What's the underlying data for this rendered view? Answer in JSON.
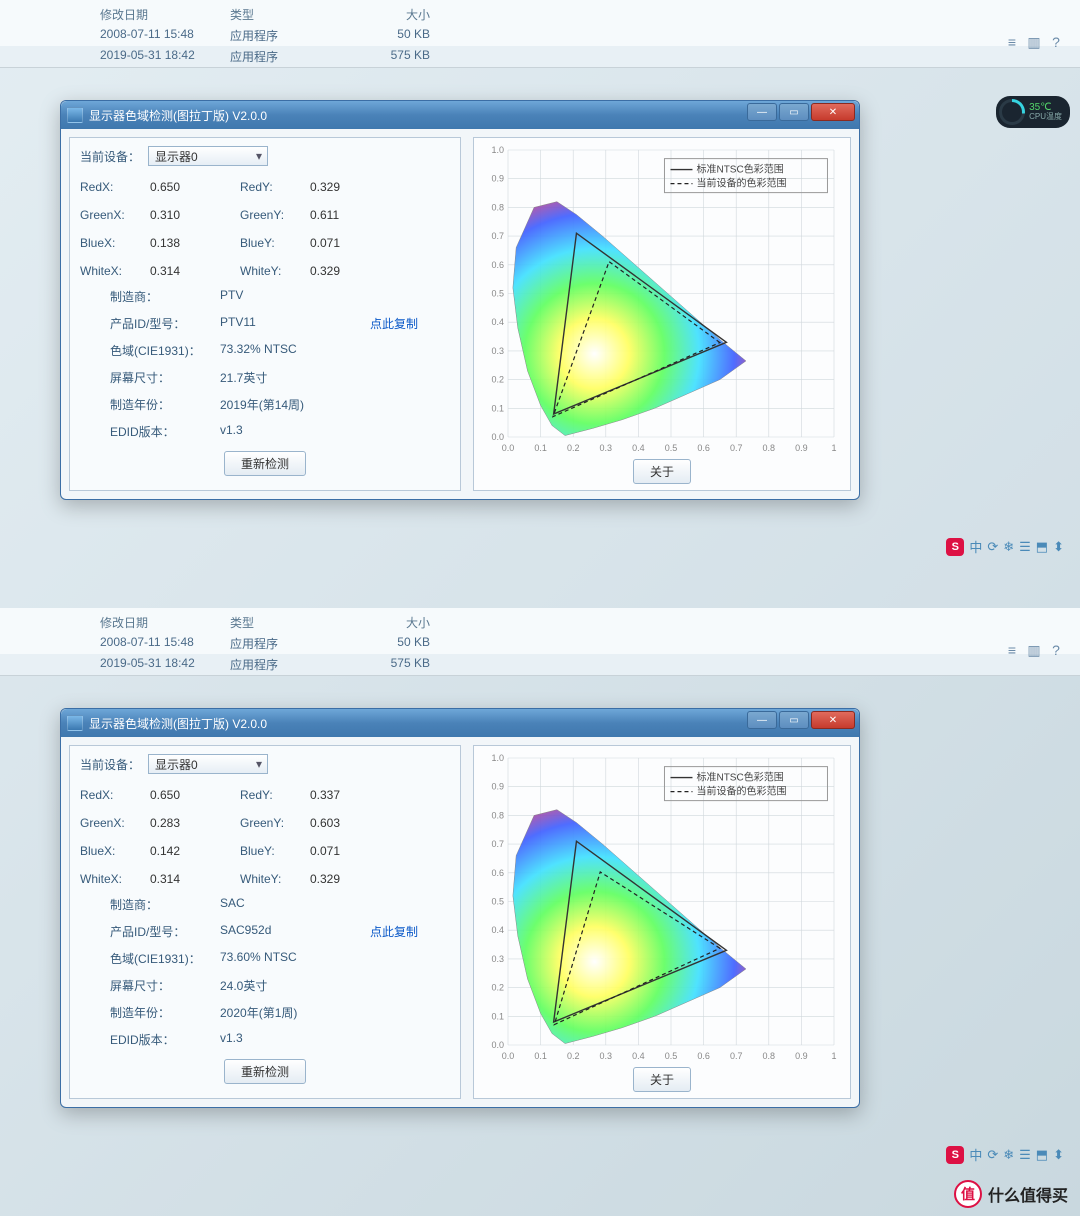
{
  "file_list": {
    "headers": {
      "date": "修改日期",
      "type": "类型",
      "size": "大小"
    },
    "rows": [
      {
        "date": "2008-07-11 15:48",
        "type": "应用程序",
        "size": "50 KB"
      },
      {
        "date": "2019-05-31 18:42",
        "type": "应用程序",
        "size": "575 KB"
      }
    ]
  },
  "explorer_icons": [
    "≡",
    "▥",
    "?"
  ],
  "window_title": "显示器色域检测(图拉丁版) V2.0.0",
  "winbtns": {
    "min": "—",
    "max": "▭",
    "close": "✕"
  },
  "current_device_label": "当前设备：",
  "device_name": "显示器0",
  "labels": {
    "RedX": "RedX:",
    "RedY": "RedY:",
    "GreenX": "GreenX:",
    "GreenY": "GreenY:",
    "BlueX": "BlueX:",
    "BlueY": "BlueY:",
    "WhiteX": "WhiteX:",
    "WhiteY": "WhiteY:",
    "maker": "制造商：",
    "pid": "产品ID/型号：",
    "gamut": "色域(CIE1931)：",
    "size": "屏幕尺寸：",
    "year": "制造年份：",
    "edid": "EDID版本：",
    "copy": "点此复制",
    "retest": "重新检测",
    "about": "关于"
  },
  "legend": {
    "ntsc": "标准NTSC色彩范围",
    "device": "当前设备的色彩范围"
  },
  "chart": {
    "xticks": [
      "0.0",
      "0.1",
      "0.2",
      "0.3",
      "0.4",
      "0.5",
      "0.6",
      "0.7",
      "0.8",
      "0.9",
      "1"
    ],
    "yticks": [
      "0.0",
      "0.1",
      "0.2",
      "0.3",
      "0.4",
      "0.5",
      "0.6",
      "0.7",
      "0.8",
      "0.9",
      "1.0"
    ],
    "grid_color": "#d0d8dc",
    "ntsc_line_color": "#333333",
    "device_line_color": "#222222",
    "device_line_dash": "4 3",
    "locus": [
      [
        0.175,
        0.005
      ],
      [
        0.135,
        0.04
      ],
      [
        0.1,
        0.11
      ],
      [
        0.06,
        0.23
      ],
      [
        0.03,
        0.38
      ],
      [
        0.015,
        0.52
      ],
      [
        0.025,
        0.66
      ],
      [
        0.08,
        0.8
      ],
      [
        0.15,
        0.82
      ],
      [
        0.21,
        0.775
      ],
      [
        0.29,
        0.7
      ],
      [
        0.38,
        0.61
      ],
      [
        0.48,
        0.51
      ],
      [
        0.58,
        0.41
      ],
      [
        0.66,
        0.33
      ],
      [
        0.73,
        0.265
      ],
      [
        0.65,
        0.2
      ],
      [
        0.55,
        0.15
      ],
      [
        0.45,
        0.1
      ],
      [
        0.35,
        0.06
      ],
      [
        0.26,
        0.03
      ],
      [
        0.175,
        0.005
      ]
    ],
    "ntsc_triangle": [
      [
        0.67,
        0.33
      ],
      [
        0.21,
        0.71
      ],
      [
        0.14,
        0.08
      ]
    ]
  },
  "panels": {
    "top": {
      "coords": {
        "RedX": "0.650",
        "RedY": "0.329",
        "GreenX": "0.310",
        "GreenY": "0.611",
        "BlueX": "0.138",
        "BlueY": "0.071",
        "WhiteX": "0.314",
        "WhiteY": "0.329"
      },
      "maker": "PTV",
      "pid": "PTV11",
      "gamut": "73.32% NTSC",
      "size": "21.7英寸",
      "year": "2019年(第14周)",
      "edid": "v1.3",
      "device_triangle": [
        [
          0.65,
          0.329
        ],
        [
          0.31,
          0.611
        ],
        [
          0.138,
          0.071
        ]
      ]
    },
    "bottom": {
      "coords": {
        "RedX": "0.650",
        "RedY": "0.337",
        "GreenX": "0.283",
        "GreenY": "0.603",
        "BlueX": "0.142",
        "BlueY": "0.071",
        "WhiteX": "0.314",
        "WhiteY": "0.329"
      },
      "maker": "SAC",
      "pid": "SAC952d",
      "gamut": "73.60% NTSC",
      "size": "24.0英寸",
      "year": "2020年(第1周)",
      "edid": "v1.3",
      "device_triangle": [
        [
          0.65,
          0.337
        ],
        [
          0.283,
          0.603
        ],
        [
          0.142,
          0.071
        ]
      ]
    }
  },
  "cpu": {
    "pct": "27%",
    "temp": "35℃",
    "label": "CPU温度"
  },
  "tray_icons": [
    "中",
    "⟳",
    "❄",
    "☰",
    "⬒",
    "⬍"
  ],
  "watermark": {
    "badge": "值",
    "text": "什么值得买"
  }
}
